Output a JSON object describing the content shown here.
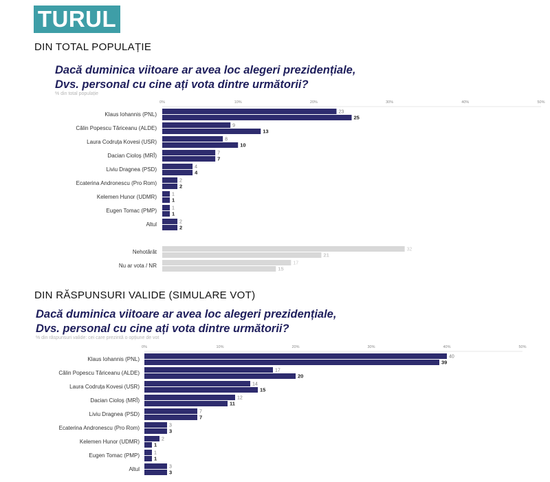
{
  "badge": "TURUL 1",
  "colors": {
    "badge_bg": "#3e9ea7",
    "primary_bar": "#2e2c6e",
    "undecided_bar": "#d8d8d8",
    "question_text": "#1f1f5c"
  },
  "section1": {
    "title": "DIN TOTAL POPULAȚIE",
    "question_line1": "Dacă duminica viitoare ar avea loc alegeri prezidențiale,",
    "question_line2": "Dvs. personal cu cine ați vota dintre următorii?",
    "note": "% din total populație"
  },
  "section2": {
    "title": "DIN RĂSPUNSURI VALIDE (SIMULARE VOT)",
    "question_line1": "Dacă duminica viitoare ar avea loc alegeri prezidențiale,",
    "question_line2": "Dvs. personal cu cine ați vota dintre următorii?",
    "note": "% din răspunsuri valide: cei care prezintă o opțiune de vot"
  },
  "chart_data": [
    {
      "type": "bar",
      "orientation": "horizontal",
      "ticks": [
        "0%",
        "10%",
        "20%",
        "30%",
        "40%",
        "50%"
      ],
      "xlim": [
        0,
        50
      ],
      "grid": false,
      "legend": "none",
      "categories": [
        "Klaus Iohannis (PNL)",
        "Călin Popescu Tăriceanu (ALDE)",
        "Laura Codruța Kovesi (USR)",
        "Dacian Cioloș (MRÎ)",
        "Liviu Dragnea (PSD)",
        "Ecaterina Andronescu (Pro Rom)",
        "Kelemen Hunor (UDMR)",
        "Eugen Tomac (PMP)",
        "Altul",
        "Nehotărât",
        "Nu ar vota / NR"
      ],
      "series": [
        {
          "values": [
            23,
            9,
            8,
            7,
            4,
            2,
            1,
            1,
            2,
            32,
            17
          ]
        },
        {
          "values": [
            25,
            13,
            10,
            7,
            4,
            2,
            1,
            1,
            2,
            21,
            15
          ]
        }
      ]
    },
    {
      "type": "bar",
      "orientation": "horizontal",
      "ticks": [
        "0%",
        "10%",
        "20%",
        "30%",
        "40%",
        "50%"
      ],
      "xlim": [
        0,
        50
      ],
      "grid": false,
      "legend": "none",
      "categories": [
        "Klaus Iohannis (PNL)",
        "Călin Popescu Tăriceanu (ALDE)",
        "Laura Codruța Kovesi (USR)",
        "Dacian Cioloș (MRÎ)",
        "Liviu Dragnea (PSD)",
        "Ecaterina Andronescu (Pro Rom)",
        "Kelemen Hunor (UDMR)",
        "Eugen Tomac (PMP)",
        "Altul"
      ],
      "series": [
        {
          "values": [
            40,
            17,
            14,
            12,
            7,
            3,
            2,
            1,
            3
          ]
        },
        {
          "values": [
            39,
            20,
            15,
            11,
            7,
            3,
            1,
            1,
            3
          ]
        }
      ]
    }
  ]
}
